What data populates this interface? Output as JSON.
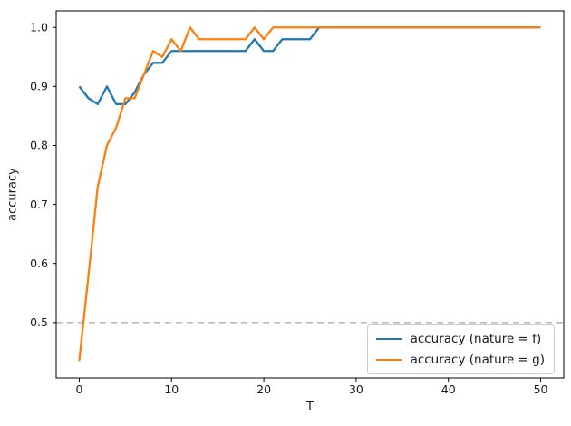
{
  "figure": {
    "background": "#ffffff",
    "axes_color": "#000000",
    "text_color": "#1a1a1a"
  },
  "chart_data": {
    "type": "line",
    "title": "",
    "xlabel": "T",
    "ylabel": "accuracy",
    "xlim": [
      -2.5,
      52.5
    ],
    "ylim": [
      0.406,
      1.028
    ],
    "grid": false,
    "xticks": [
      0,
      10,
      20,
      30,
      40,
      50
    ],
    "xtick_labels": [
      "0",
      "10",
      "20",
      "30",
      "40",
      "50"
    ],
    "yticks": [
      0.5,
      0.6,
      0.7,
      0.8,
      0.9,
      1.0
    ],
    "ytick_labels": [
      "0.5",
      "0.6",
      "0.7",
      "0.8",
      "0.9",
      "1.0"
    ],
    "hline": {
      "y": 0.5,
      "style": "dashed",
      "color": "#b0b0b0"
    },
    "x": [
      0,
      1,
      2,
      3,
      4,
      5,
      6,
      7,
      8,
      9,
      10,
      11,
      12,
      13,
      14,
      15,
      16,
      17,
      18,
      19,
      20,
      21,
      22,
      23,
      24,
      25,
      26,
      27,
      28,
      29,
      30,
      31,
      32,
      33,
      34,
      35,
      36,
      37,
      38,
      39,
      40,
      41,
      42,
      43,
      44,
      45,
      46,
      47,
      48,
      49,
      50
    ],
    "series": [
      {
        "name": "accuracy (nature = f)",
        "color": "#1f77b4",
        "values": [
          0.9,
          0.88,
          0.87,
          0.9,
          0.87,
          0.87,
          0.89,
          0.92,
          0.94,
          0.94,
          0.96,
          0.96,
          0.96,
          0.96,
          0.96,
          0.96,
          0.96,
          0.96,
          0.96,
          0.98,
          0.96,
          0.96,
          0.98,
          0.98,
          0.98,
          0.98,
          1.0,
          1.0,
          1.0,
          1.0,
          1.0,
          1.0,
          1.0,
          1.0,
          1.0,
          1.0,
          1.0,
          1.0,
          1.0,
          1.0,
          1.0,
          1.0,
          1.0,
          1.0,
          1.0,
          1.0,
          1.0,
          1.0,
          1.0,
          1.0,
          1.0
        ]
      },
      {
        "name": "accuracy (nature = g)",
        "color": "#ff7f0e",
        "values": [
          0.435,
          0.58,
          0.73,
          0.8,
          0.83,
          0.88,
          0.88,
          0.92,
          0.96,
          0.95,
          0.98,
          0.96,
          1.0,
          0.98,
          0.98,
          0.98,
          0.98,
          0.98,
          0.98,
          1.0,
          0.98,
          1.0,
          1.0,
          1.0,
          1.0,
          1.0,
          1.0,
          1.0,
          1.0,
          1.0,
          1.0,
          1.0,
          1.0,
          1.0,
          1.0,
          1.0,
          1.0,
          1.0,
          1.0,
          1.0,
          1.0,
          1.0,
          1.0,
          1.0,
          1.0,
          1.0,
          1.0,
          1.0,
          1.0,
          1.0,
          1.0
        ]
      }
    ],
    "legend": {
      "position": "lower right",
      "entries": [
        "accuracy (nature = f)",
        "accuracy (nature = g)"
      ]
    }
  }
}
